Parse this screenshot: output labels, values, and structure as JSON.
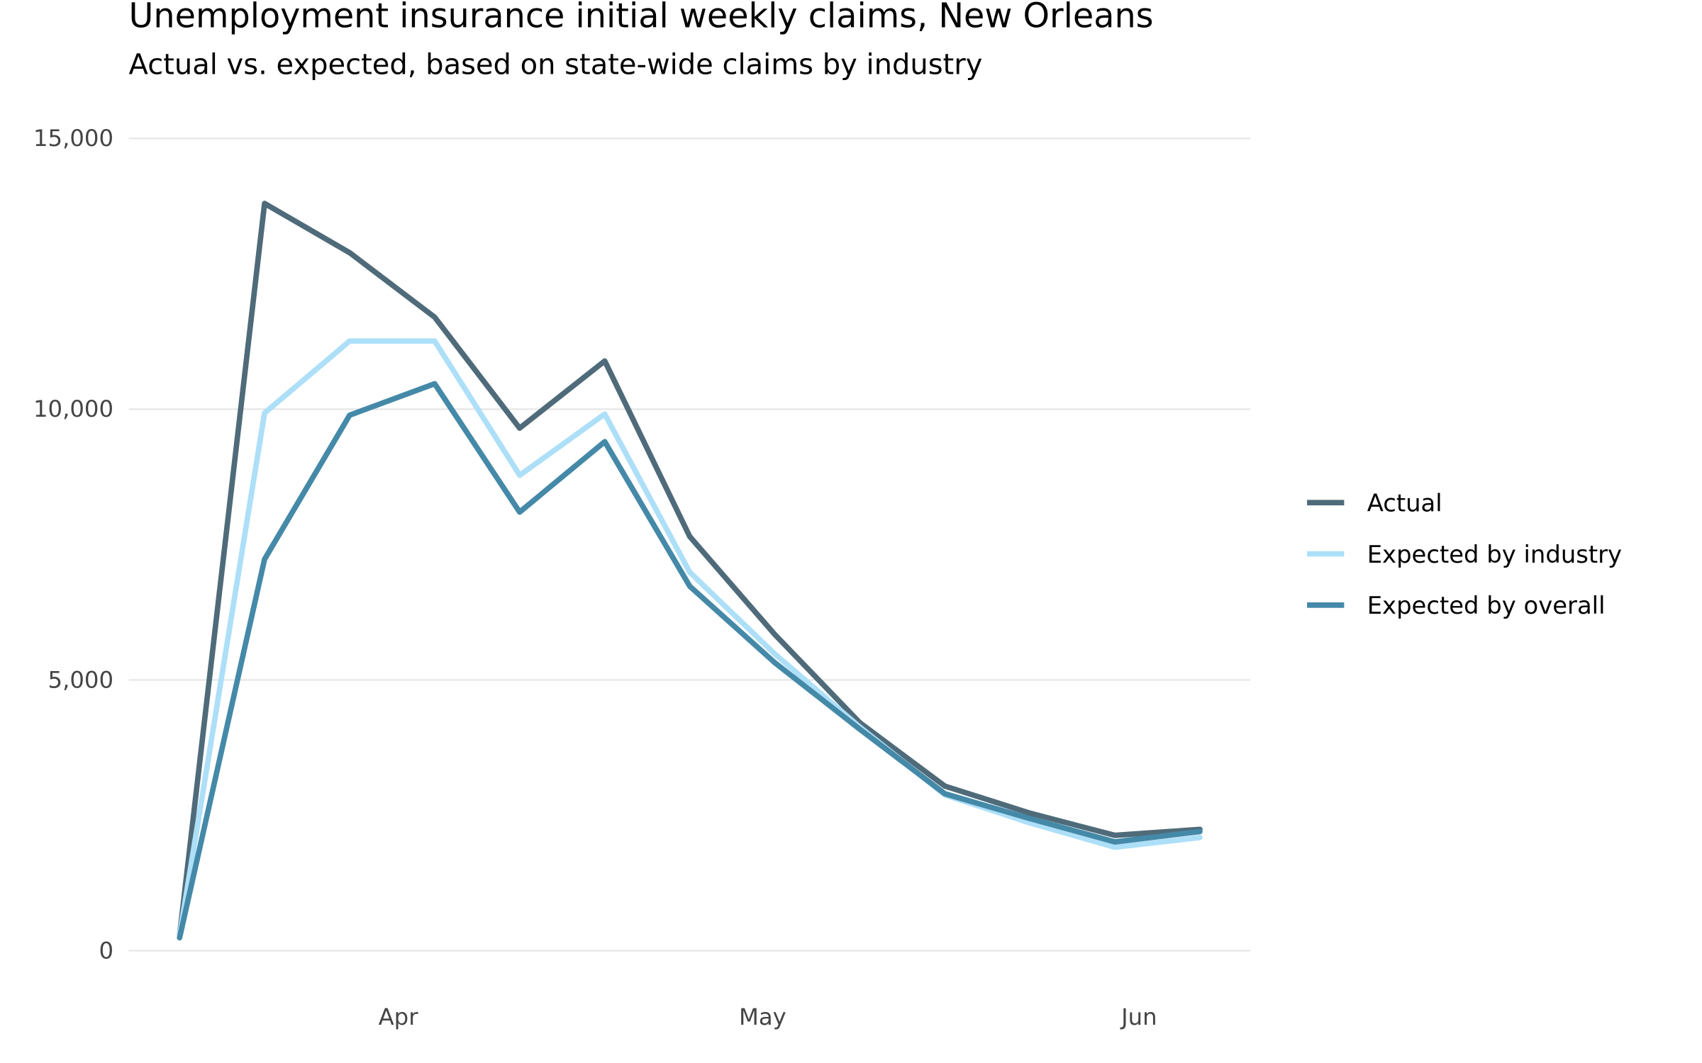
{
  "chart_data": {
    "type": "line",
    "title": "Unemployment insurance initial weekly claims, New Orleans",
    "subtitle": "Actual vs. expected, based on state-wide claims by industry",
    "xlabel": "",
    "ylabel": "",
    "x": [
      "2020-03-14",
      "2020-03-21",
      "2020-03-28",
      "2020-04-04",
      "2020-04-11",
      "2020-04-18",
      "2020-04-25",
      "2020-05-02",
      "2020-05-09",
      "2020-05-16",
      "2020-05-23",
      "2020-05-30",
      "2020-06-06"
    ],
    "xlim": [
      "2020-03-11",
      "2020-06-10"
    ],
    "x_ticks": [
      {
        "date": "2020-04-01",
        "label": "Apr"
      },
      {
        "date": "2020-05-01",
        "label": "May"
      },
      {
        "date": "2020-06-01",
        "label": "Jun"
      }
    ],
    "ylim": [
      -1000,
      16000
    ],
    "y_ticks": [
      {
        "value": 0,
        "label": "0"
      },
      {
        "value": 5000,
        "label": "5,000"
      },
      {
        "value": 10000,
        "label": "10,000"
      },
      {
        "value": 15000,
        "label": "15,000"
      }
    ],
    "grid": "horizontal",
    "legend_position": "right",
    "series": [
      {
        "name": "Actual",
        "color": "#4f6b7a",
        "values": [
          280,
          13800,
          12890,
          11700,
          9650,
          10890,
          7650,
          5840,
          4210,
          3040,
          2540,
          2130,
          2240
        ]
      },
      {
        "name": "Expected by industry",
        "color": "#addff8",
        "values": [
          280,
          9930,
          11260,
          11260,
          8780,
          9910,
          6990,
          5480,
          4130,
          2880,
          2360,
          1910,
          2090
        ]
      },
      {
        "name": "Expected by overall",
        "color": "#4589a8",
        "values": [
          240,
          7230,
          9890,
          10470,
          8100,
          9400,
          6730,
          5320,
          4090,
          2900,
          2440,
          2010,
          2200
        ]
      }
    ]
  }
}
